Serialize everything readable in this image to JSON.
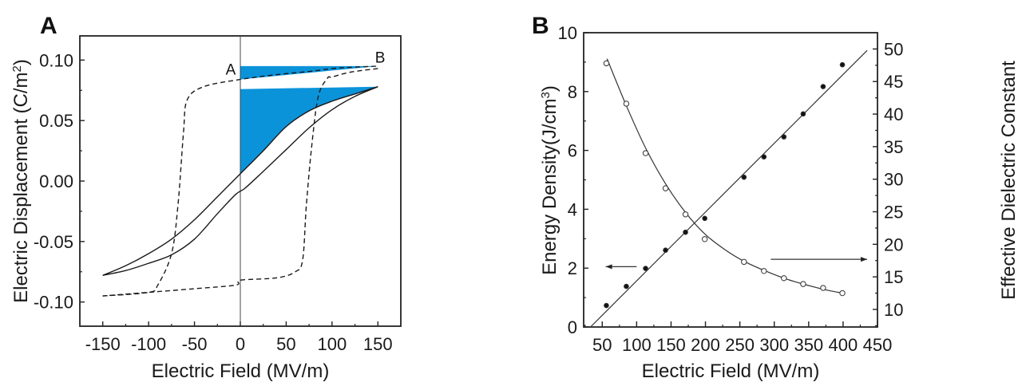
{
  "chart_data": [
    {
      "panel": "A",
      "type": "line",
      "title": "",
      "xlabel": "Electric Field (MV/m)",
      "ylabel": "Electric Displacement (C/m²)",
      "ylabel_main": "Electric Displacement (C/m",
      "ylabel_sup": "2",
      "ylabel_end": ")",
      "xlim": [
        -175,
        175
      ],
      "ylim": [
        -0.12,
        0.12
      ],
      "xticks": [
        -150,
        -100,
        -50,
        0,
        50,
        100,
        150
      ],
      "xtick_labels": [
        "-150",
        "-100",
        "-50",
        "0",
        "50",
        "100",
        "150"
      ],
      "yticks": [
        -0.1,
        -0.05,
        0.0,
        0.05,
        0.1
      ],
      "ytick_labels": [
        "-0.10",
        "-0.05",
        "0.00",
        "0.05",
        "0.10"
      ],
      "grid": false,
      "annotations": [
        {
          "text": "A",
          "x": -5,
          "y": 0.088
        },
        {
          "text": "B",
          "x": 158,
          "y": 0.098
        }
      ],
      "fill_color": "#0b93da",
      "series": [
        {
          "name": "dashed loop (upper branch)",
          "style": "dashed",
          "x": [
            -150,
            -100,
            -90,
            -75,
            -68,
            -62,
            -58,
            -40,
            0,
            40,
            80,
            100,
            120,
            150
          ],
          "y": [
            -0.095,
            -0.092,
            -0.086,
            -0.06,
            -0.02,
            0.04,
            0.067,
            0.078,
            0.084,
            0.088,
            0.091,
            0.093,
            0.094,
            0.095
          ]
        },
        {
          "name": "dashed loop (lower branch)",
          "style": "dashed",
          "x": [
            150,
            120,
            100,
            95,
            85,
            78,
            72,
            68,
            60,
            40,
            0,
            -5,
            -50,
            -100,
            -150
          ],
          "y": [
            0.093,
            0.09,
            0.086,
            0.085,
            0.07,
            0.03,
            -0.02,
            -0.065,
            -0.075,
            -0.08,
            -0.082,
            -0.086,
            -0.089,
            -0.092,
            -0.095
          ]
        },
        {
          "name": "solid loop (upper branch)",
          "style": "solid",
          "x": [
            -150,
            -125,
            -100,
            -75,
            -50,
            -25,
            0,
            25,
            50,
            75,
            100,
            125,
            150
          ],
          "y": [
            -0.078,
            -0.07,
            -0.06,
            -0.048,
            -0.032,
            -0.013,
            0.006,
            0.025,
            0.045,
            0.058,
            0.066,
            0.072,
            0.078
          ]
        },
        {
          "name": "solid loop (lower branch)",
          "style": "solid",
          "x": [
            150,
            125,
            100,
            75,
            50,
            25,
            5,
            -5,
            -25,
            -50,
            -75,
            -100,
            -125,
            -150
          ],
          "y": [
            0.078,
            0.07,
            0.059,
            0.044,
            0.026,
            0.008,
            -0.006,
            -0.011,
            -0.027,
            -0.048,
            -0.061,
            -0.068,
            -0.074,
            -0.078
          ]
        },
        {
          "name": "shaded energy region (upper)",
          "style": "fill",
          "x": [
            0,
            150,
            0
          ],
          "y": [
            0.095,
            0.095,
            0.084
          ]
        },
        {
          "name": "shaded energy region (lower)",
          "style": "fill",
          "x": [
            0,
            150,
            125,
            100,
            75,
            50,
            25,
            0
          ],
          "y": [
            0.076,
            0.078,
            0.072,
            0.066,
            0.058,
            0.045,
            0.025,
            0.006
          ]
        }
      ]
    },
    {
      "panel": "B",
      "type": "scatter",
      "title": "",
      "xlabel": "Electric Field (MV/m)",
      "ylabel": "Energy Density(J/cm³)",
      "ylabel_main": "Energy Density(J/cm",
      "ylabel_sup": "3",
      "ylabel_end": ")",
      "y2label": "Effective Dielectric Constant",
      "xlim": [
        23,
        450
      ],
      "ylim": [
        0,
        10
      ],
      "y2lim": [
        7.3,
        52.5
      ],
      "xticks": [
        50,
        100,
        150,
        200,
        250,
        300,
        350,
        400,
        450
      ],
      "xtick_labels": [
        "50",
        "100",
        "150",
        "200",
        "250",
        "300",
        "350",
        "400",
        "450"
      ],
      "yticks": [
        0,
        2,
        4,
        6,
        8,
        10
      ],
      "ytick_labels": [
        "0",
        "2",
        "4",
        "6",
        "8",
        "10"
      ],
      "y2ticks": [
        10,
        15,
        20,
        25,
        30,
        35,
        40,
        45,
        50
      ],
      "y2tick_labels": [
        "10",
        "15",
        "20",
        "25",
        "30",
        "35",
        "40",
        "45",
        "50"
      ],
      "grid": false,
      "arrows": [
        {
          "direction": "left",
          "meaning": "energy density -> left axis",
          "y_left": 2.05,
          "x_from": 100,
          "x_to": 55
        },
        {
          "direction": "right",
          "meaning": "dielectric constant -> right axis",
          "y_left": 2.3,
          "x_from": 295,
          "x_to": 435
        }
      ],
      "series": [
        {
          "name": "Energy Density",
          "axis": "left",
          "marker": "filled-circle",
          "x": [
            56,
            85,
            113,
            142,
            171,
            199,
            256,
            285,
            314,
            342,
            371,
            399
          ],
          "y": [
            0.73,
            1.38,
            1.99,
            2.61,
            3.22,
            3.69,
            5.09,
            5.78,
            6.46,
            7.24,
            8.17,
            8.91
          ]
        },
        {
          "name": "Energy Density fit",
          "axis": "left",
          "style": "line",
          "x": [
            33,
            435
          ],
          "y": [
            0.0,
            9.4
          ]
        },
        {
          "name": "Effective Dielectric Constant",
          "axis": "right",
          "marker": "open-circle",
          "x": [
            56,
            85,
            113,
            142,
            171,
            199,
            256,
            285,
            314,
            342,
            371,
            399
          ],
          "y": [
            47.8,
            41.6,
            34.0,
            28.6,
            24.6,
            20.8,
            17.3,
            15.9,
            14.8,
            13.9,
            13.3,
            12.5
          ]
        },
        {
          "name": "Effective Dielectric Constant fit",
          "axis": "right",
          "style": "line",
          "x": [
            57,
            85,
            113,
            142,
            171,
            199,
            228,
            256,
            285,
            314,
            342,
            371,
            399
          ],
          "y": [
            48.5,
            41.3,
            34.8,
            29.3,
            24.9,
            21.6,
            19.2,
            17.4,
            16.0,
            14.8,
            13.9,
            13.1,
            12.5
          ]
        }
      ]
    }
  ]
}
